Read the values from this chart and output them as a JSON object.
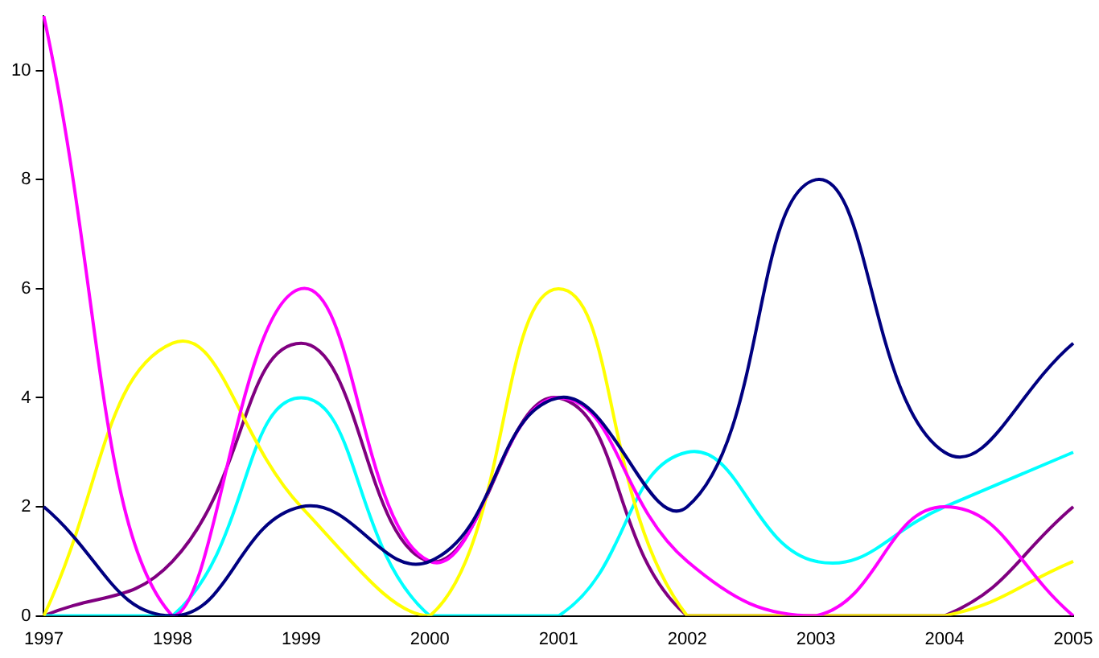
{
  "chart_data": {
    "type": "line",
    "categories": [
      "1997",
      "1998",
      "1999",
      "2000",
      "2001",
      "2002",
      "2003",
      "2004",
      "2005"
    ],
    "ylim": [
      0,
      11
    ],
    "yticks": [
      0,
      2,
      4,
      6,
      8,
      10
    ],
    "grid": false,
    "legend": false,
    "marker": "none",
    "line_style": "solid",
    "series": [
      {
        "color": "#000080",
        "values": [
          2,
          0,
          2,
          1,
          4,
          2,
          8,
          3,
          5
        ]
      },
      {
        "color": "#ff00ff",
        "values": [
          11,
          0,
          6,
          1,
          4,
          1,
          0,
          2,
          0
        ]
      },
      {
        "color": "#ffff00",
        "values": [
          0,
          5,
          2,
          0,
          6,
          0,
          0,
          0,
          1
        ]
      },
      {
        "color": "#00ffff",
        "values": [
          0,
          0,
          4,
          0,
          0,
          3,
          1,
          2,
          3
        ]
      },
      {
        "color": "#800080",
        "values": [
          0,
          1,
          5,
          1,
          4,
          0,
          0,
          0,
          2
        ]
      }
    ]
  }
}
